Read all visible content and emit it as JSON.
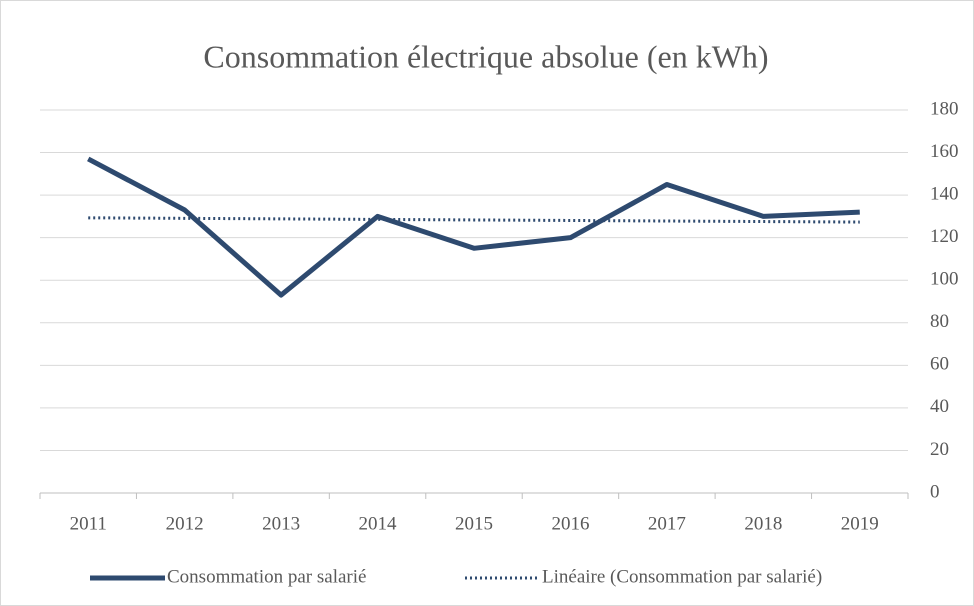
{
  "chart_data": {
    "type": "line",
    "title": "Consommation électrique absolue (en kWh)",
    "categories": [
      "2011",
      "2012",
      "2013",
      "2014",
      "2015",
      "2016",
      "2017",
      "2018",
      "2019"
    ],
    "series": [
      {
        "name": "Consommation par salarié",
        "color": "#2e4a6f",
        "style": "solid",
        "values": [
          157,
          133,
          93,
          130,
          115,
          120,
          145,
          130,
          132
        ]
      },
      {
        "name": "Linéaire (Consommation par salarié)",
        "color": "#2e4a6f",
        "style": "dotted",
        "values": [
          129.33,
          129.08,
          128.83,
          128.58,
          128.33,
          128.08,
          127.83,
          127.58,
          127.33
        ]
      }
    ],
    "ylim": [
      0,
      180
    ],
    "yticks": [
      0,
      20,
      40,
      60,
      80,
      100,
      120,
      140,
      160,
      180
    ],
    "y_axis_side": "right",
    "grid": true,
    "legend": "bottom"
  }
}
